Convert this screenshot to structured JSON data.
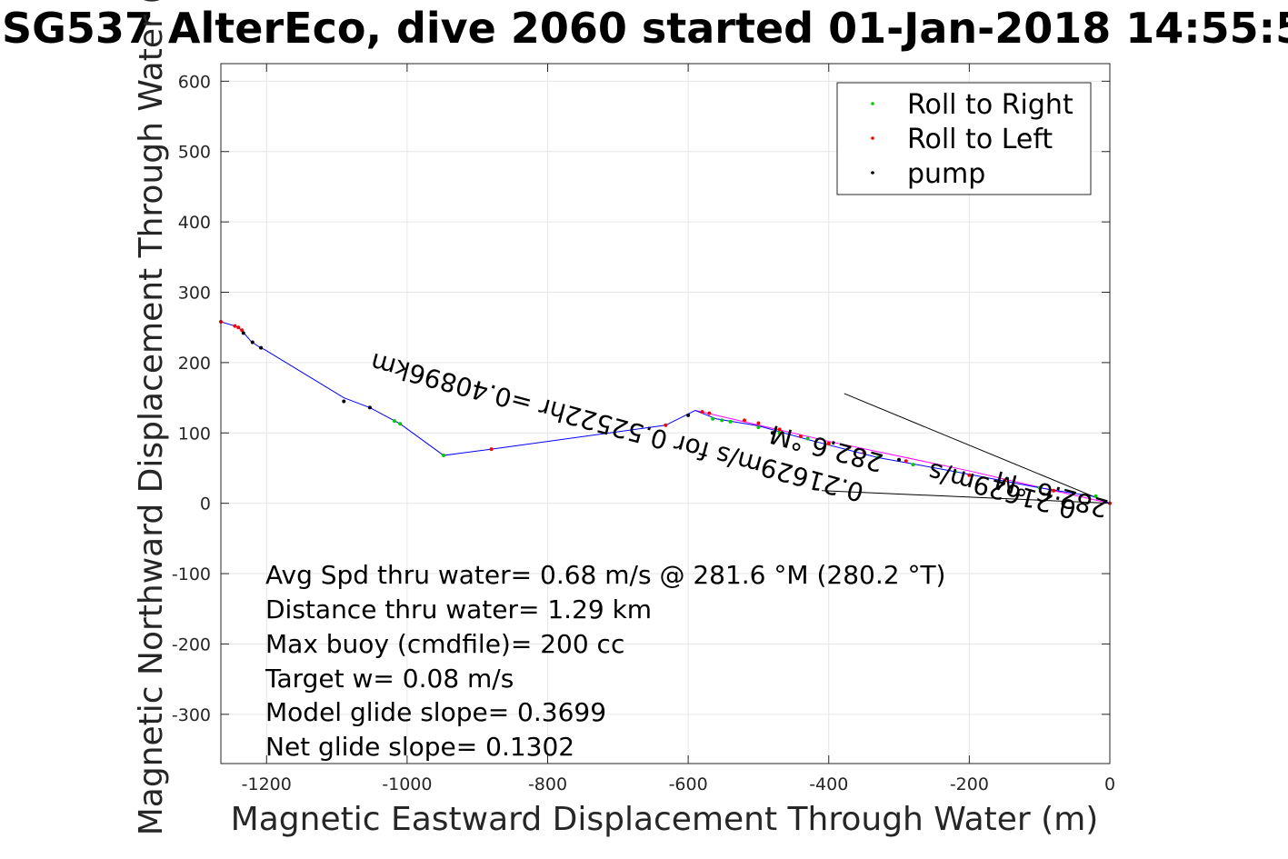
{
  "chart_data": {
    "type": "line",
    "title": "SG537 AlterEco, dive 2060 started 01-Jan-2018 14:55:5",
    "xlabel": "Magnetic Eastward Displacement Through Water (m)",
    "ylabel": "Magnetic Northward Displacement Through Water (",
    "xlim": [
      -1265,
      0
    ],
    "ylim": [
      -370,
      625
    ],
    "xticks": [
      -1200,
      -1000,
      -800,
      -600,
      -400,
      -200,
      0
    ],
    "yticks": [
      -300,
      -200,
      -100,
      0,
      100,
      200,
      300,
      400,
      500,
      600
    ],
    "grid": true,
    "legend": {
      "position": "top-right",
      "entries": [
        {
          "label": "Roll to Right",
          "color": "#00cc00"
        },
        {
          "label": "Roll to Left",
          "color": "#ff0000"
        },
        {
          "label": "pump",
          "color": "#000000"
        }
      ]
    },
    "track": {
      "name": "track",
      "color": "#0000ff",
      "x": [
        -1265,
        -1245,
        -1238,
        -1233,
        -1222,
        -1210,
        -1202,
        -1090,
        -1053,
        -1010,
        -948,
        -880,
        -632,
        -590,
        -560,
        -500,
        -420,
        -330,
        -220,
        -100,
        -25,
        0
      ],
      "y": [
        258,
        252,
        248,
        243,
        230,
        222,
        218,
        150,
        136,
        113,
        68,
        77,
        111,
        132,
        120,
        110,
        88,
        65,
        45,
        22,
        10,
        0
      ]
    },
    "roll_right": {
      "x": [
        -1010,
        -1018,
        -948,
        -565,
        -552,
        -540,
        -500,
        -470,
        -430,
        -400,
        -330,
        -280,
        -220,
        -100,
        -20
      ],
      "y": [
        113,
        117,
        68,
        120,
        118,
        116,
        108,
        100,
        92,
        85,
        65,
        55,
        45,
        22,
        10
      ]
    },
    "roll_left": {
      "x": [
        -1265,
        -1245,
        -1240,
        -1235,
        -880,
        -632,
        -580,
        -570,
        -520,
        -500,
        -470,
        -440,
        -400,
        -350,
        -290,
        -200,
        -150,
        -80,
        0
      ],
      "y": [
        258,
        252,
        250,
        246,
        77,
        111,
        130,
        128,
        118,
        114,
        105,
        95,
        85,
        72,
        60,
        40,
        32,
        18,
        0
      ]
    },
    "pump": {
      "x": [
        -1233,
        -1220,
        -1208,
        -1090,
        -1053,
        -600,
        -480,
        -300
      ],
      "y": [
        242,
        229,
        221,
        145,
        136,
        125,
        100,
        62
      ]
    },
    "aux_lines": [
      {
        "name": "heading-line-upper",
        "color": "#000000",
        "x": [
          -378,
          0
        ],
        "y": [
          156,
          0
        ]
      },
      {
        "name": "heading-line-lower",
        "color": "#000000",
        "x": [
          -410,
          0
        ],
        "y": [
          18,
          0
        ]
      },
      {
        "name": "magenta-track",
        "color": "#ff00ff",
        "x": [
          -590,
          -400,
          -200,
          -80,
          0
        ],
        "y": [
          132,
          88,
          46,
          18,
          0
        ]
      }
    ],
    "rotated_annotations": [
      {
        "text": "0.4089 km",
        "x": -700,
        "y": 135,
        "angle": 180
      },
      {
        "text": "0.21629m/s for 0.52522hr =0.40896km",
        "x": -745,
        "y": 120,
        "angle": 180
      }
    ],
    "annotations": [
      "Avg Spd thru water=  0.68 m/s @ 281.6 °M (280.2 °T)",
      "Distance thru water=  1.29 km",
      "Max buoy (cmdfile)= 200 cc",
      "Target w= 0.08 m/s",
      "Model glide slope= 0.3699",
      "Net glide slope= 0.1302"
    ],
    "rotated_labels": [
      {
        "text": "0.21629m/s for 0.52522hr =0.40896km",
        "x": -698,
        "y": 120,
        "angle": 195
      },
      {
        "text": "282.6 °M",
        "x": -400,
        "y": 90,
        "angle": 195
      },
      {
        "text": "282.6 °M",
        "x": -80,
        "y": 25,
        "angle": 195
      },
      {
        "text": "0.21629m/s",
        "x": -150,
        "y": 30,
        "angle": 195
      }
    ]
  }
}
